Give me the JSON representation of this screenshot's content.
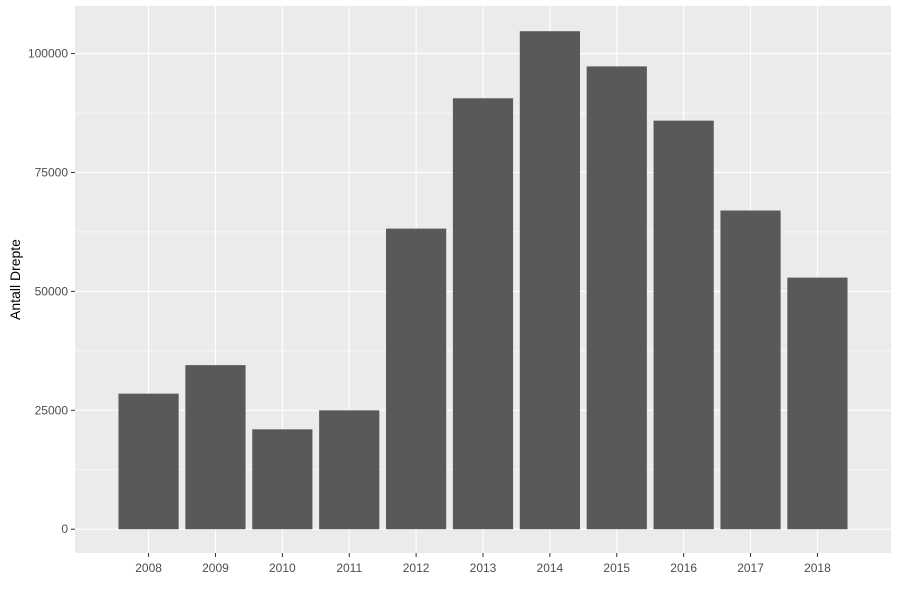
{
  "chart_data": {
    "type": "bar",
    "categories": [
      "2008",
      "2009",
      "2010",
      "2011",
      "2012",
      "2013",
      "2014",
      "2015",
      "2016",
      "2017",
      "2018"
    ],
    "values": [
      28500,
      34500,
      21000,
      25000,
      63200,
      90600,
      104700,
      97300,
      85900,
      67000,
      52900
    ],
    "title": "",
    "xlabel": "",
    "ylabel": "Antall Drepte",
    "ylim": [
      -5000,
      110000
    ],
    "yticks": [
      0,
      25000,
      50000,
      75000,
      100000
    ],
    "ytick_labels": [
      "0",
      "25000",
      "50000",
      "75000",
      "100000"
    ],
    "grid": true,
    "legend": "none",
    "colors": {
      "panel_background": "#ebebeb",
      "grid_major": "#ffffff",
      "bar_fill": "#595959",
      "tick_text": "#4d4d4d"
    }
  }
}
